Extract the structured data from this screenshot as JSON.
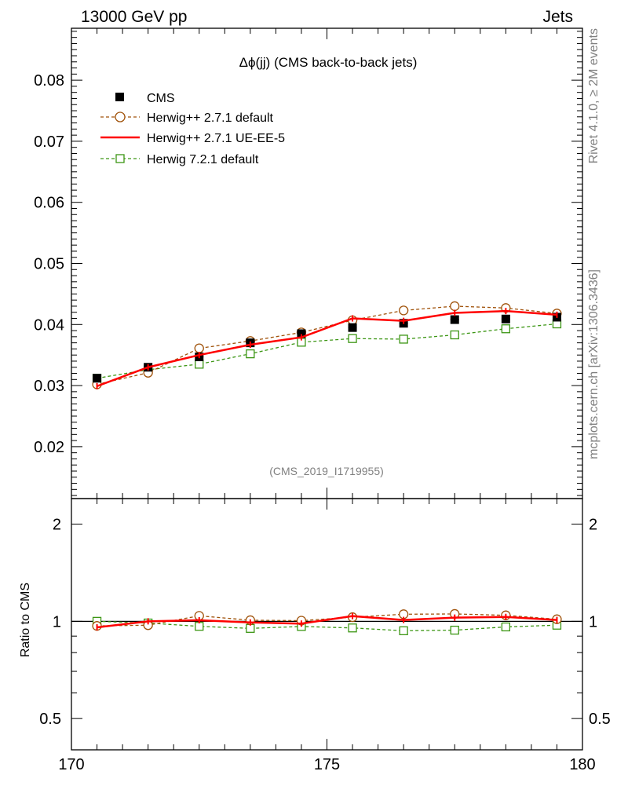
{
  "header": {
    "left_title": "13000 GeV pp",
    "right_title": "Jets"
  },
  "side_labels": {
    "rivet": "Rivet 4.1.0, ≥ 2M events",
    "mcplots": "mcplots.cern.ch [arXiv:1306.3436]"
  },
  "chart_data": [
    {
      "type": "line",
      "panel": "main",
      "title": "Δϕ(jj) (CMS back-to-back jets)",
      "watermark": "(CMS_2019_I1719955)",
      "xlabel": "",
      "ylabel": "",
      "xlim": [
        170,
        180
      ],
      "ylim": [
        0.0115,
        0.0885
      ],
      "yticks": [
        0.02,
        0.03,
        0.04,
        0.05,
        0.06,
        0.07,
        0.08
      ],
      "ytick_labels": [
        "0.02",
        "0.03",
        "0.04",
        "0.05",
        "0.06",
        "0.07",
        "0.08"
      ],
      "x": [
        170.5,
        171.5,
        172.5,
        173.5,
        174.5,
        175.5,
        176.5,
        177.5,
        178.5,
        179.5
      ],
      "legend_position": "top-left",
      "series": [
        {
          "name": "CMS",
          "style": "data",
          "color": "#000000",
          "values": [
            0.0312,
            0.033,
            0.0347,
            0.037,
            0.0385,
            0.0395,
            0.0402,
            0.0408,
            0.0409,
            0.0412
          ],
          "errors": [
            0.0003,
            0.0004,
            0.0004,
            0.0004,
            0.0004,
            0.0004,
            0.0004,
            0.0004,
            0.0004,
            0.0004
          ]
        },
        {
          "name": "Herwig++ 2.7.1 default",
          "style": "dashed-circle",
          "color": "#a0520a",
          "values": [
            0.0302,
            0.0321,
            0.0361,
            0.0373,
            0.0387,
            0.0407,
            0.0423,
            0.043,
            0.0427,
            0.0418
          ]
        },
        {
          "name": "Herwig++ 2.7.1 UE-EE-5",
          "style": "solid",
          "color": "#ff0000",
          "values": [
            0.0299,
            0.033,
            0.035,
            0.0367,
            0.0379,
            0.041,
            0.0406,
            0.0419,
            0.0422,
            0.0416
          ]
        },
        {
          "name": "Herwig 7.2.1 default",
          "style": "dashed-square",
          "color": "#3c9614",
          "values": [
            0.0312,
            0.0326,
            0.0335,
            0.0352,
            0.0371,
            0.0377,
            0.0376,
            0.0383,
            0.0393,
            0.0401
          ]
        }
      ]
    },
    {
      "type": "line",
      "panel": "ratio",
      "ylabel": "Ratio to CMS",
      "xlim": [
        170,
        180
      ],
      "ylim": [
        0.4,
        2.4
      ],
      "log_y": true,
      "yticks": [
        0.5,
        1,
        2
      ],
      "ytick_labels": [
        "0.5",
        "1",
        "2"
      ],
      "xticks": [
        170,
        175,
        180
      ],
      "xtick_labels": [
        "170",
        "175",
        "180"
      ],
      "x": [
        170.5,
        171.5,
        172.5,
        173.5,
        174.5,
        175.5,
        176.5,
        177.5,
        178.5,
        179.5
      ],
      "series": [
        {
          "name": "Herwig++ 2.7.1 default",
          "style": "dashed-circle",
          "color": "#a0520a",
          "values": [
            0.968,
            0.973,
            1.04,
            1.008,
            1.005,
            1.03,
            1.052,
            1.054,
            1.044,
            1.015
          ]
        },
        {
          "name": "Herwig++ 2.7.1 UE-EE-5",
          "style": "solid",
          "color": "#ff0000",
          "values": [
            0.958,
            1.0,
            1.008,
            0.992,
            0.984,
            1.038,
            1.01,
            1.027,
            1.032,
            1.01
          ]
        },
        {
          "name": "Herwig 7.2.1 default",
          "style": "dashed-square",
          "color": "#3c9614",
          "values": [
            1.0,
            0.988,
            0.965,
            0.951,
            0.964,
            0.954,
            0.935,
            0.939,
            0.961,
            0.973
          ]
        }
      ]
    }
  ]
}
